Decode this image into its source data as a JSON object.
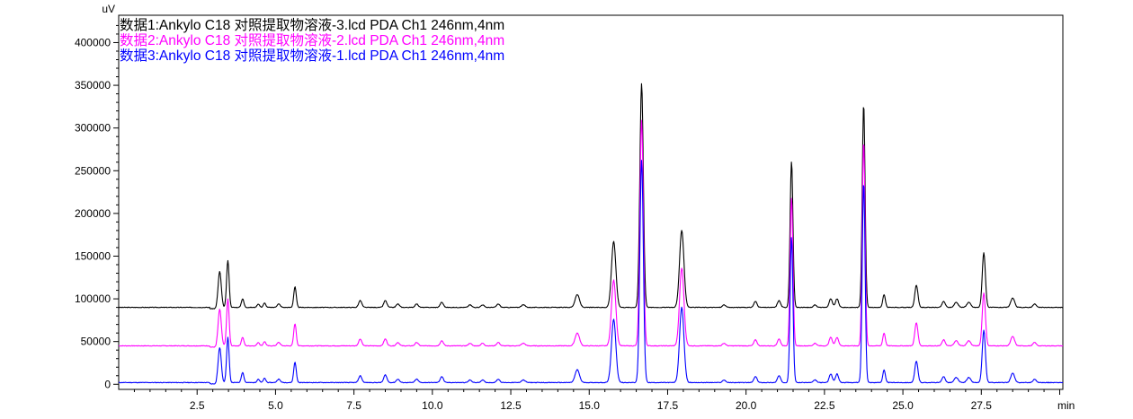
{
  "chart_data": {
    "type": "line",
    "title": "",
    "xlabel": "min",
    "ylabel": "uV",
    "xlim": [
      0,
      30.1
    ],
    "ylim": [
      -6000,
      432000
    ],
    "xticks": [
      2.5,
      5.0,
      7.5,
      10.0,
      12.5,
      15.0,
      17.5,
      20.0,
      22.5,
      25.0,
      27.5
    ],
    "xtick_labels": [
      "2.5",
      "5.0",
      "7.5",
      "10.0",
      "12.5",
      "15.0",
      "17.5",
      "20.0",
      "22.5",
      "25.0",
      "27.5"
    ],
    "yticks": [
      0,
      50000,
      100000,
      150000,
      200000,
      250000,
      300000,
      350000,
      400000
    ],
    "ytick_labels": [
      "0",
      "50000",
      "100000",
      "150000",
      "200000",
      "250000",
      "300000",
      "350000",
      "400000"
    ],
    "grid": false,
    "legend_position": "top-left",
    "series": [
      {
        "name": "数据1:Ankylo C18 对照提取物溶液-3.lcd PDA Ch1 246nm,4nm",
        "color": "#000000",
        "offset": 90000,
        "noise_seed": 3,
        "peaks": [
          [
            3.22,
            42000,
            0.05
          ],
          [
            3.48,
            55000,
            0.04
          ],
          [
            3.95,
            10000,
            0.04
          ],
          [
            4.45,
            4000,
            0.04
          ],
          [
            4.65,
            5000,
            0.04
          ],
          [
            5.1,
            4000,
            0.05
          ],
          [
            5.62,
            24000,
            0.04
          ],
          [
            7.7,
            8000,
            0.05
          ],
          [
            8.5,
            8000,
            0.05
          ],
          [
            8.9,
            4000,
            0.05
          ],
          [
            9.5,
            4000,
            0.05
          ],
          [
            10.3,
            6000,
            0.05
          ],
          [
            11.2,
            3000,
            0.05
          ],
          [
            11.6,
            3000,
            0.05
          ],
          [
            12.1,
            4000,
            0.05
          ],
          [
            12.9,
            3000,
            0.06
          ],
          [
            14.62,
            15000,
            0.07
          ],
          [
            15.78,
            77000,
            0.07
          ],
          [
            16.67,
            262000,
            0.055
          ],
          [
            17.95,
            90000,
            0.07
          ],
          [
            19.3,
            3000,
            0.05
          ],
          [
            20.3,
            7000,
            0.05
          ],
          [
            21.05,
            8000,
            0.05
          ],
          [
            21.45,
            171000,
            0.045
          ],
          [
            22.2,
            3000,
            0.05
          ],
          [
            22.7,
            10000,
            0.05
          ],
          [
            22.9,
            10000,
            0.05
          ],
          [
            23.75,
            238000,
            0.045
          ],
          [
            24.4,
            15000,
            0.04
          ],
          [
            25.43,
            26000,
            0.05
          ],
          [
            26.3,
            7000,
            0.05
          ],
          [
            26.7,
            6000,
            0.06
          ],
          [
            27.1,
            6000,
            0.06
          ],
          [
            27.58,
            64000,
            0.05
          ],
          [
            28.5,
            11000,
            0.06
          ],
          [
            29.2,
            4000,
            0.05
          ]
        ]
      },
      {
        "name": "数据2:Ankylo C18 对照提取物溶液-2.lcd PDA Ch1 246nm,4nm",
        "color": "#ff00ff",
        "offset": 45000,
        "noise_seed": 7,
        "peaks": [
          [
            3.22,
            43000,
            0.05
          ],
          [
            3.48,
            55000,
            0.04
          ],
          [
            3.95,
            10000,
            0.04
          ],
          [
            4.45,
            4000,
            0.04
          ],
          [
            4.65,
            5000,
            0.04
          ],
          [
            5.1,
            4000,
            0.05
          ],
          [
            5.62,
            26000,
            0.04
          ],
          [
            7.7,
            8000,
            0.05
          ],
          [
            8.5,
            8000,
            0.05
          ],
          [
            8.9,
            4000,
            0.05
          ],
          [
            9.5,
            4000,
            0.05
          ],
          [
            10.3,
            6000,
            0.05
          ],
          [
            11.2,
            3000,
            0.05
          ],
          [
            11.6,
            3000,
            0.05
          ],
          [
            12.1,
            4000,
            0.05
          ],
          [
            12.9,
            3000,
            0.06
          ],
          [
            14.62,
            15000,
            0.07
          ],
          [
            15.78,
            77000,
            0.07
          ],
          [
            16.67,
            264000,
            0.055
          ],
          [
            17.95,
            91000,
            0.07
          ],
          [
            19.3,
            3000,
            0.05
          ],
          [
            20.3,
            7000,
            0.05
          ],
          [
            21.05,
            8000,
            0.05
          ],
          [
            21.45,
            173000,
            0.045
          ],
          [
            22.2,
            3000,
            0.05
          ],
          [
            22.7,
            10000,
            0.05
          ],
          [
            22.9,
            10000,
            0.05
          ],
          [
            23.75,
            240000,
            0.045
          ],
          [
            24.4,
            15000,
            0.04
          ],
          [
            25.43,
            27000,
            0.05
          ],
          [
            26.3,
            7000,
            0.05
          ],
          [
            26.7,
            6000,
            0.06
          ],
          [
            27.1,
            6000,
            0.06
          ],
          [
            27.58,
            62000,
            0.05
          ],
          [
            28.5,
            11000,
            0.06
          ],
          [
            29.2,
            4000,
            0.05
          ]
        ]
      },
      {
        "name": "数据3:Ankylo C18 对照提取物溶液-1.lcd PDA Ch1 246nm,4nm",
        "color": "#0000ff",
        "offset": 2000,
        "noise_seed": 11,
        "peaks": [
          [
            3.22,
            41000,
            0.05
          ],
          [
            3.48,
            53000,
            0.04
          ],
          [
            3.95,
            12000,
            0.04
          ],
          [
            4.45,
            4000,
            0.04
          ],
          [
            4.65,
            5000,
            0.04
          ],
          [
            5.1,
            4000,
            0.05
          ],
          [
            5.62,
            24000,
            0.04
          ],
          [
            7.7,
            8000,
            0.05
          ],
          [
            8.5,
            9000,
            0.05
          ],
          [
            8.9,
            4000,
            0.05
          ],
          [
            9.5,
            4000,
            0.05
          ],
          [
            10.3,
            7000,
            0.05
          ],
          [
            11.2,
            3000,
            0.05
          ],
          [
            11.6,
            3000,
            0.05
          ],
          [
            12.1,
            4000,
            0.05
          ],
          [
            12.9,
            3000,
            0.06
          ],
          [
            14.62,
            15000,
            0.07
          ],
          [
            15.78,
            74000,
            0.07
          ],
          [
            16.67,
            260000,
            0.055
          ],
          [
            17.95,
            88000,
            0.07
          ],
          [
            19.3,
            3000,
            0.05
          ],
          [
            20.3,
            7000,
            0.05
          ],
          [
            21.05,
            8000,
            0.05
          ],
          [
            21.45,
            170000,
            0.045
          ],
          [
            22.2,
            3000,
            0.05
          ],
          [
            22.7,
            10000,
            0.05
          ],
          [
            22.9,
            10000,
            0.05
          ],
          [
            23.75,
            235000,
            0.045
          ],
          [
            24.4,
            15000,
            0.04
          ],
          [
            25.43,
            25000,
            0.05
          ],
          [
            26.3,
            7000,
            0.05
          ],
          [
            26.7,
            6000,
            0.06
          ],
          [
            27.1,
            6000,
            0.06
          ],
          [
            27.58,
            61000,
            0.05
          ],
          [
            28.5,
            11000,
            0.06
          ],
          [
            29.2,
            4000,
            0.05
          ]
        ]
      }
    ]
  }
}
